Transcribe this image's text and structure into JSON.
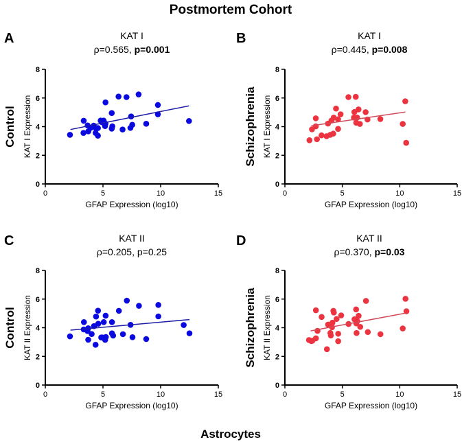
{
  "figure_title": "Postmortem Cohort",
  "figure_xlabel": "Astrocytes",
  "chart_data": [
    {
      "panel": "A",
      "type": "scatter",
      "title": "KAT I",
      "stat_rho": "ρ=0.565, ",
      "stat_p": "p=0.001",
      "p_bold": true,
      "group_label": "Control",
      "xlabel": "GFAP Expression (log10)",
      "ylabel": "KAT I Expression",
      "xlim": [
        0,
        15
      ],
      "ylim": [
        0,
        8
      ],
      "xticks": [
        0,
        5,
        10,
        15
      ],
      "yticks": [
        0,
        2,
        4,
        6,
        8
      ],
      "color": "#0a0ae0",
      "line_color": "#1c1ca8",
      "fit_line": [
        [
          2.18,
          3.8
        ],
        [
          12.46,
          5.45
        ]
      ],
      "points": [
        [
          2.14,
          3.43
        ],
        [
          3.33,
          4.41
        ],
        [
          3.31,
          3.56
        ],
        [
          3.67,
          4.08
        ],
        [
          3.73,
          3.67
        ],
        [
          3.93,
          3.91
        ],
        [
          4.2,
          4.07
        ],
        [
          4.36,
          3.91
        ],
        [
          4.56,
          3.9
        ],
        [
          4.36,
          3.56
        ],
        [
          4.56,
          3.37
        ],
        [
          4.8,
          4.42
        ],
        [
          5.06,
          4.42
        ],
        [
          4.92,
          4.3
        ],
        [
          5.22,
          4.21
        ],
        [
          5.18,
          4.04
        ],
        [
          5.22,
          5.69
        ],
        [
          5.76,
          4.95
        ],
        [
          5.81,
          4.02
        ],
        [
          5.76,
          3.86
        ],
        [
          6.35,
          6.1
        ],
        [
          7.04,
          6.06
        ],
        [
          6.7,
          3.8
        ],
        [
          7.44,
          4.71
        ],
        [
          7.54,
          4.13
        ],
        [
          7.38,
          3.91
        ],
        [
          8.09,
          6.25
        ],
        [
          8.75,
          4.2
        ],
        [
          9.76,
          5.51
        ],
        [
          9.76,
          4.86
        ],
        [
          12.46,
          4.39
        ]
      ]
    },
    {
      "panel": "B",
      "type": "scatter",
      "title": "KAT I",
      "stat_rho": "ρ=0.445, ",
      "stat_p": "p=0.008",
      "p_bold": true,
      "group_label": "Schizophrenia",
      "xlabel": "GFAP Expression (log10)",
      "ylabel": "KAT I Expression",
      "xlim": [
        0,
        15
      ],
      "ylim": [
        0,
        8
      ],
      "xticks": [
        0,
        5,
        10,
        15
      ],
      "yticks": [
        0,
        2,
        4,
        6,
        8
      ],
      "color": "#ec3440",
      "line_color": "#d24a58",
      "fit_line": [
        [
          2.3,
          4.06
        ],
        [
          10.48,
          5.02
        ]
      ],
      "points": [
        [
          2.14,
          3.05
        ],
        [
          2.36,
          3.81
        ],
        [
          2.69,
          4.58
        ],
        [
          2.69,
          4.02
        ],
        [
          2.79,
          3.12
        ],
        [
          3.19,
          3.39
        ],
        [
          3.63,
          3.33
        ],
        [
          3.75,
          4.21
        ],
        [
          3.95,
          3.43
        ],
        [
          4.05,
          4.42
        ],
        [
          4.21,
          3.51
        ],
        [
          4.25,
          4.63
        ],
        [
          4.45,
          5.26
        ],
        [
          4.63,
          4.51
        ],
        [
          4.63,
          3.84
        ],
        [
          4.85,
          4.86
        ],
        [
          5.53,
          6.06
        ],
        [
          6.17,
          6.08
        ],
        [
          6.05,
          5.02
        ],
        [
          6.41,
          5.2
        ],
        [
          6.01,
          4.63
        ],
        [
          6.29,
          4.63
        ],
        [
          6.21,
          4.27
        ],
        [
          6.53,
          4.19
        ],
        [
          7.03,
          5.01
        ],
        [
          7.19,
          4.5
        ],
        [
          8.31,
          4.53
        ],
        [
          10.26,
          4.19
        ],
        [
          10.48,
          5.77
        ],
        [
          10.56,
          2.87
        ]
      ]
    },
    {
      "panel": "C",
      "type": "scatter",
      "title": "KAT II",
      "stat_rho": "ρ=0.205, ",
      "stat_p": "p=0.25",
      "p_bold": false,
      "group_label": "Control",
      "xlabel": "GFAP Expression (log10)",
      "ylabel": "KAT II Expression",
      "xlim": [
        0,
        15
      ],
      "ylim": [
        0,
        8
      ],
      "xticks": [
        0,
        5,
        10,
        15
      ],
      "yticks": [
        0,
        2,
        4,
        6,
        8
      ],
      "color": "#0a0ae0",
      "line_color": "#1c1ca8",
      "fit_line": [
        [
          2.18,
          3.83
        ],
        [
          12.5,
          4.57
        ]
      ],
      "points": [
        [
          2.14,
          3.4
        ],
        [
          3.35,
          4.39
        ],
        [
          3.33,
          3.88
        ],
        [
          3.66,
          3.77
        ],
        [
          3.72,
          3.96
        ],
        [
          3.72,
          3.16
        ],
        [
          4.02,
          3.56
        ],
        [
          4.22,
          4.11
        ],
        [
          4.36,
          2.81
        ],
        [
          4.4,
          4.78
        ],
        [
          4.57,
          5.19
        ],
        [
          4.59,
          4.28
        ],
        [
          4.85,
          3.32
        ],
        [
          4.95,
          3.32
        ],
        [
          5.07,
          4.39
        ],
        [
          5.19,
          3.15
        ],
        [
          5.25,
          3.35
        ],
        [
          5.23,
          4.84
        ],
        [
          5.78,
          4.39
        ],
        [
          5.78,
          3.61
        ],
        [
          5.88,
          3.45
        ],
        [
          6.38,
          5.18
        ],
        [
          6.73,
          3.55
        ],
        [
          7.07,
          5.89
        ],
        [
          7.39,
          4.2
        ],
        [
          7.56,
          3.34
        ],
        [
          8.12,
          5.53
        ],
        [
          8.75,
          3.21
        ],
        [
          9.8,
          5.59
        ],
        [
          9.8,
          4.79
        ],
        [
          12.0,
          4.19
        ],
        [
          12.5,
          3.61
        ]
      ]
    },
    {
      "panel": "D",
      "type": "scatter",
      "title": "KAT II",
      "stat_rho": "ρ=0.370, ",
      "stat_p": "p=0.03",
      "p_bold": true,
      "group_label": "Schizophrenia",
      "xlabel": "GFAP Expression (log10)",
      "ylabel": "KAT II Expression",
      "xlim": [
        0,
        15
      ],
      "ylim": [
        0,
        8
      ],
      "xticks": [
        0,
        5,
        10,
        15
      ],
      "yticks": [
        0,
        2,
        4,
        6,
        8
      ],
      "color": "#ec3440",
      "line_color": "#d24a58",
      "fit_line": [
        [
          2.24,
          3.78
        ],
        [
          10.5,
          5.02
        ]
      ],
      "points": [
        [
          2.1,
          3.14
        ],
        [
          2.3,
          3.07
        ],
        [
          2.4,
          3.1
        ],
        [
          2.7,
          3.26
        ],
        [
          2.7,
          5.22
        ],
        [
          2.84,
          3.78
        ],
        [
          3.2,
          4.75
        ],
        [
          3.66,
          2.5
        ],
        [
          3.76,
          4.22
        ],
        [
          3.96,
          3.63
        ],
        [
          4.0,
          3.46
        ],
        [
          4.1,
          4.03
        ],
        [
          4.14,
          4.35
        ],
        [
          4.22,
          5.18
        ],
        [
          4.26,
          5.06
        ],
        [
          4.5,
          4.61
        ],
        [
          4.64,
          3.58
        ],
        [
          4.64,
          3.06
        ],
        [
          4.9,
          4.86
        ],
        [
          5.54,
          4.26
        ],
        [
          6.06,
          4.59
        ],
        [
          6.2,
          5.28
        ],
        [
          6.22,
          4.3
        ],
        [
          6.24,
          3.63
        ],
        [
          6.3,
          4.46
        ],
        [
          6.42,
          4.83
        ],
        [
          6.56,
          4.06
        ],
        [
          7.06,
          5.87
        ],
        [
          7.22,
          3.7
        ],
        [
          8.32,
          3.55
        ],
        [
          10.26,
          3.95
        ],
        [
          10.5,
          6.02
        ],
        [
          10.58,
          5.15
        ]
      ]
    }
  ]
}
